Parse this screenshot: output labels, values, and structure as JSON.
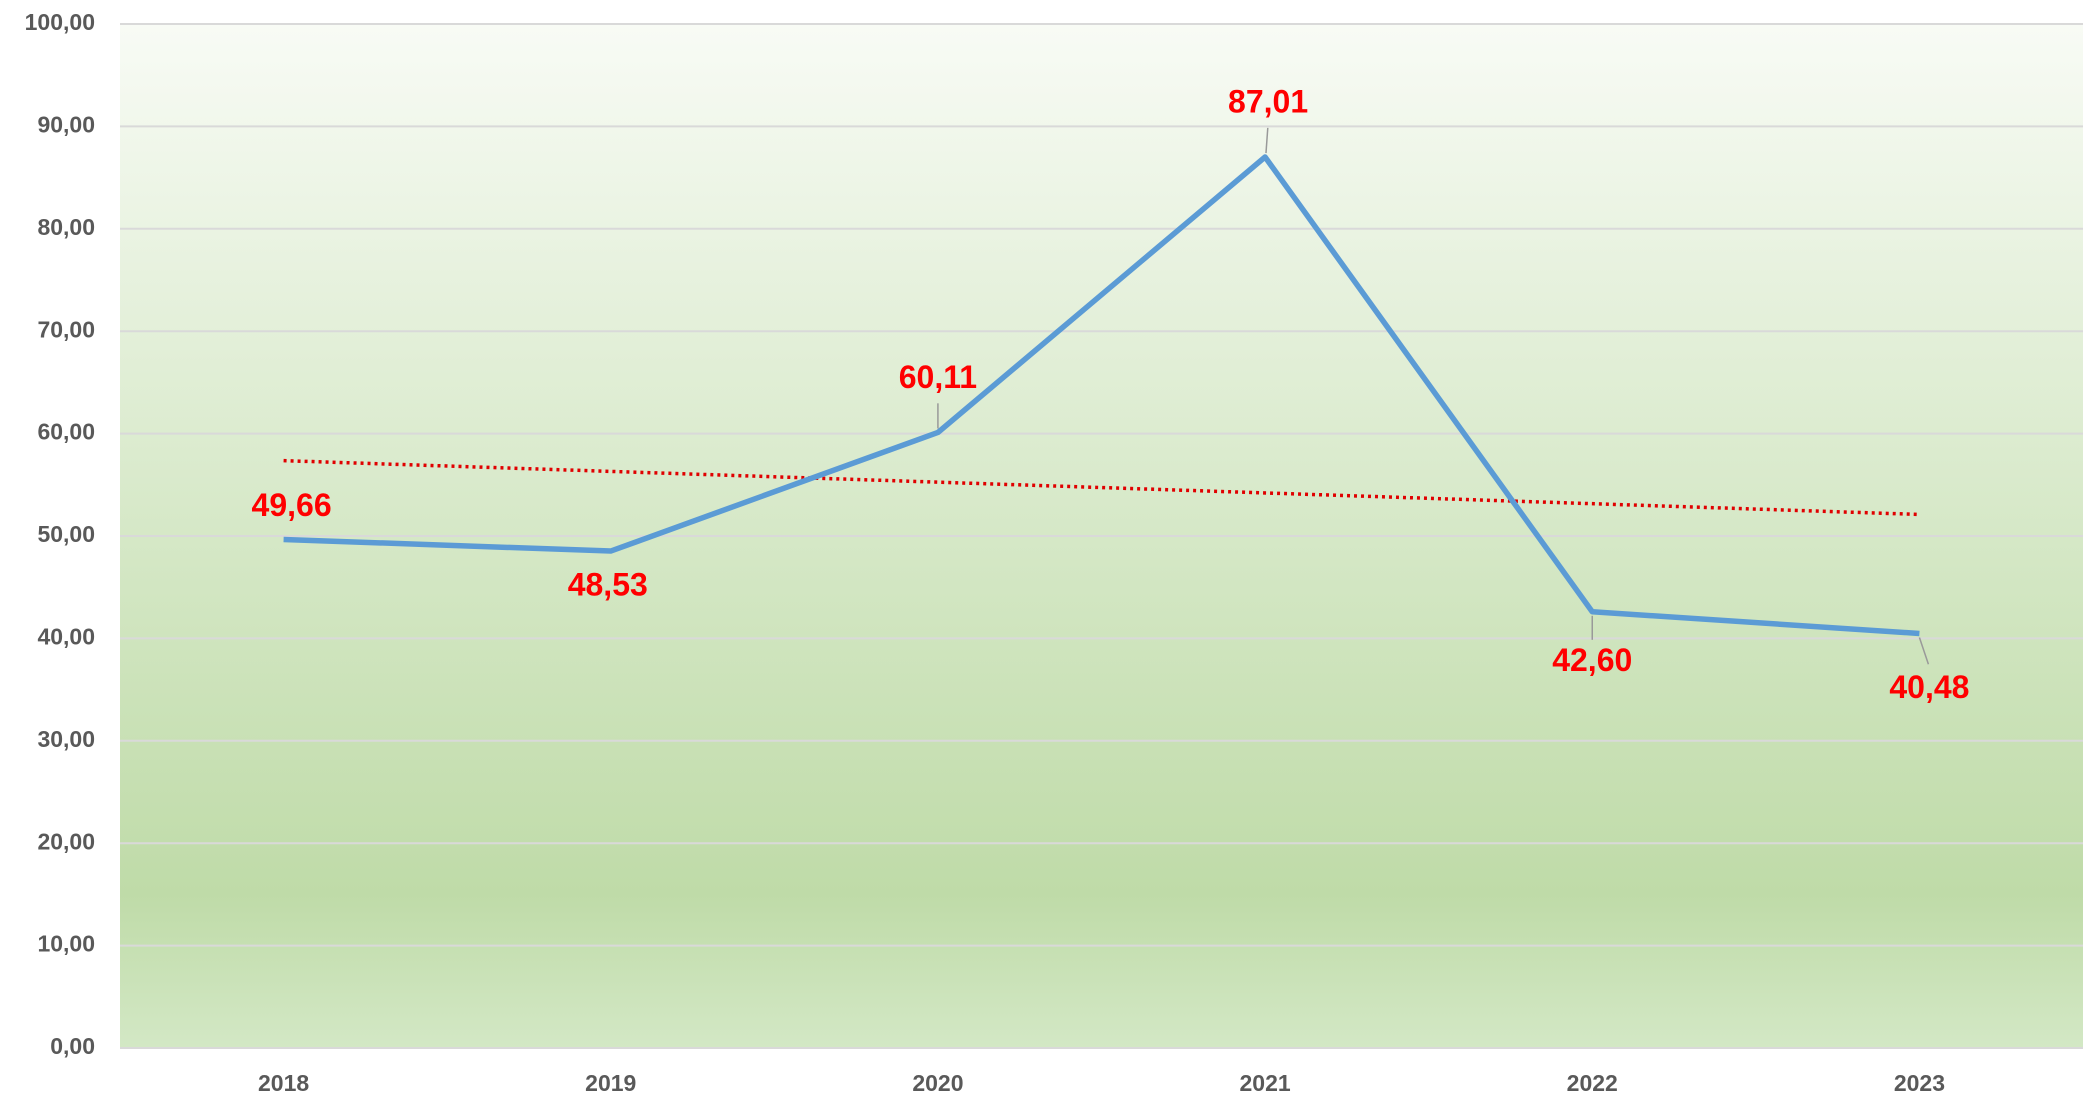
{
  "chart_data": {
    "type": "line",
    "categories": [
      "2018",
      "2019",
      "2020",
      "2021",
      "2022",
      "2023"
    ],
    "values": [
      49.66,
      48.53,
      60.11,
      87.01,
      42.6,
      40.48
    ],
    "value_labels": [
      "49,66",
      "48,53",
      "60,11",
      "87,01",
      "42,60",
      "40,48"
    ],
    "color": "#5b9bd5",
    "label_color": "#ff0000",
    "trendline": true,
    "trend_color": "#e00000",
    "ylim": [
      0,
      100
    ],
    "yticks": [
      {
        "value": 0,
        "label": "0,00"
      },
      {
        "value": 10,
        "label": "10,00"
      },
      {
        "value": 20,
        "label": "20,00"
      },
      {
        "value": 30,
        "label": "30,00"
      },
      {
        "value": 40,
        "label": "40,00"
      },
      {
        "value": 50,
        "label": "50,00"
      },
      {
        "value": 60,
        "label": "60,00"
      },
      {
        "value": 70,
        "label": "70,00"
      },
      {
        "value": 80,
        "label": "80,00"
      },
      {
        "value": 90,
        "label": "90,00"
      },
      {
        "value": 100,
        "label": "100,00"
      }
    ],
    "grid": true
  }
}
